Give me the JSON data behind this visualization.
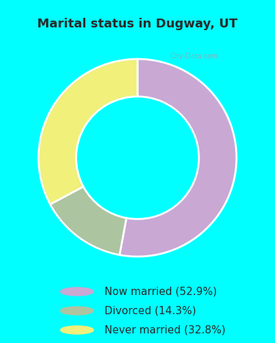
{
  "title": "Marital status in Dugway, UT",
  "slices": [
    52.9,
    14.3,
    32.8
  ],
  "labels": [
    "Now married (52.9%)",
    "Divorced (14.3%)",
    "Never married (32.8%)"
  ],
  "colors": [
    "#c9a8d4",
    "#adc4a0",
    "#f0f07a"
  ],
  "background_color": "#00ffff",
  "chart_bg": "#cce8d8",
  "donut_width": 0.38,
  "title_color": "#2a2a2a",
  "title_fontsize": 13,
  "legend_fontsize": 11,
  "watermark": "City-Data.com"
}
